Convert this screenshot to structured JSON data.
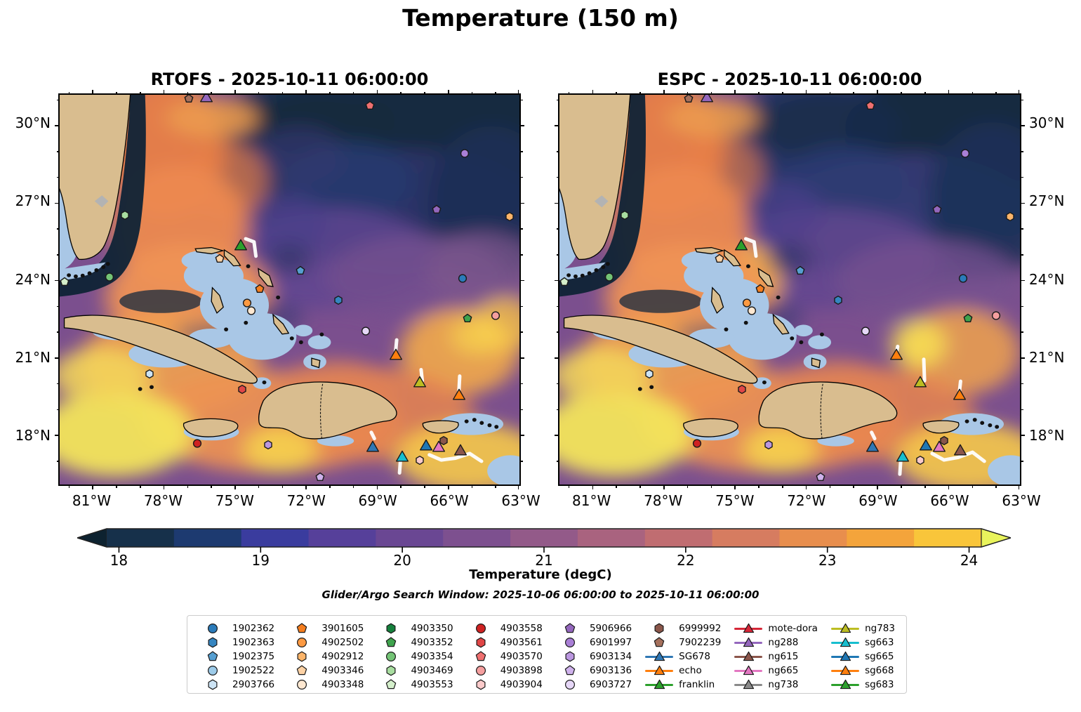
{
  "figure": {
    "title": "Temperature (150 m)",
    "subtitle": "Glider/Argo Search Window: 2025-10-06 06:00:00 to 2025-10-11 06:00:00"
  },
  "panels": [
    {
      "name": "rtofs",
      "title": "RTOFS - 2025-10-11 06:00:00"
    },
    {
      "name": "espc",
      "title": "ESPC - 2025-10-11 06:00:00"
    }
  ],
  "axes": {
    "lon_left_edge": 82.4,
    "lon_right_edge": 63.0,
    "lat_top_edge": 31.2,
    "lat_bottom_edge": 16.1,
    "x_ticks": [
      {
        "lon": 81,
        "label": "81°W"
      },
      {
        "lon": 78,
        "label": "78°W"
      },
      {
        "lon": 75,
        "label": "75°W"
      },
      {
        "lon": 72,
        "label": "72°W"
      },
      {
        "lon": 69,
        "label": "69°W"
      },
      {
        "lon": 66,
        "label": "66°W"
      },
      {
        "lon": 63,
        "label": "63°W"
      }
    ],
    "x_minor_ticks": [
      82,
      80,
      79,
      77,
      76,
      74,
      73,
      71,
      70,
      68,
      67,
      65,
      64
    ],
    "y_ticks": [
      {
        "lat": 30,
        "label": "30°N"
      },
      {
        "lat": 27,
        "label": "27°N"
      },
      {
        "lat": 24,
        "label": "24°N"
      },
      {
        "lat": 21,
        "label": "21°N"
      },
      {
        "lat": 18,
        "label": "18°N"
      }
    ],
    "y_minor_ticks": [
      31,
      29,
      28,
      26,
      25,
      23,
      22,
      20,
      19,
      17
    ]
  },
  "colorbar": {
    "label": "Temperature (degC)",
    "ticks": [
      "18",
      "19",
      "20",
      "21",
      "22",
      "23",
      "24"
    ],
    "arrow_left": "#0d2230",
    "arrow_right": "#e9f45c",
    "segments": [
      "#16304a",
      "#1d3a70",
      "#3a3c9e",
      "#56409a",
      "#6a4793",
      "#7d508f",
      "#935a89",
      "#a9637f",
      "#c06d71",
      "#d67c60",
      "#e88e4d",
      "#f4a43b",
      "#f9c53a"
    ]
  },
  "legend": {
    "entries": [
      {
        "id": "1902362",
        "shape": "circle",
        "color": "#2b7bba",
        "line": false
      },
      {
        "id": "1902363",
        "shape": "hexagon",
        "color": "#3585c0",
        "line": false
      },
      {
        "id": "1902375",
        "shape": "pentagon",
        "color": "#569fd1",
        "line": false
      },
      {
        "id": "1902522",
        "shape": "circle",
        "color": "#9dcbe9",
        "line": false
      },
      {
        "id": "2903766",
        "shape": "hexagon",
        "color": "#cde4f5",
        "line": false
      },
      {
        "id": "3901605",
        "shape": "pentagon",
        "color": "#f57e1f",
        "line": false
      },
      {
        "id": "4902502",
        "shape": "circle",
        "color": "#fd9a42",
        "line": false
      },
      {
        "id": "4902912",
        "shape": "hexagon",
        "color": "#fdb56a",
        "line": false
      },
      {
        "id": "4903346",
        "shape": "pentagon",
        "color": "#fdd2a5",
        "line": false
      },
      {
        "id": "4903348",
        "shape": "circle",
        "color": "#fee8d1",
        "line": false
      },
      {
        "id": "4903350",
        "shape": "hexagon",
        "color": "#15803c",
        "line": false
      },
      {
        "id": "4903352",
        "shape": "pentagon",
        "color": "#3fa34d",
        "line": false
      },
      {
        "id": "4903354",
        "shape": "circle",
        "color": "#74c476",
        "line": false
      },
      {
        "id": "4903469",
        "shape": "hexagon",
        "color": "#a8dda0",
        "line": false
      },
      {
        "id": "4903553",
        "shape": "pentagon",
        "color": "#d4efcb",
        "line": false
      },
      {
        "id": "4903558",
        "shape": "circle",
        "color": "#cf2222",
        "line": false
      },
      {
        "id": "4903561",
        "shape": "hexagon",
        "color": "#e04646",
        "line": false
      },
      {
        "id": "4903570",
        "shape": "pentagon",
        "color": "#ef7070",
        "line": false
      },
      {
        "id": "4903898",
        "shape": "circle",
        "color": "#f59f9f",
        "line": false
      },
      {
        "id": "4903904",
        "shape": "hexagon",
        "color": "#fbcaca",
        "line": false
      },
      {
        "id": "5906966",
        "shape": "pentagon",
        "color": "#9467bd",
        "line": false
      },
      {
        "id": "6901997",
        "shape": "circle",
        "color": "#a97fd6",
        "line": false
      },
      {
        "id": "6903134",
        "shape": "hexagon",
        "color": "#bb97e0",
        "line": false
      },
      {
        "id": "6903136",
        "shape": "pentagon",
        "color": "#cfb2ec",
        "line": false
      },
      {
        "id": "6903727",
        "shape": "circle",
        "color": "#e6d7f7",
        "line": false
      },
      {
        "id": "6999992",
        "shape": "hexagon",
        "color": "#8a564a",
        "line": false
      },
      {
        "id": "7902239",
        "shape": "pentagon",
        "color": "#a5705c",
        "line": false
      },
      {
        "id": "SG678",
        "shape": "triangle",
        "color": "#2f77b4",
        "line": true
      },
      {
        "id": "echo",
        "shape": "triangle",
        "color": "#ff7f0e",
        "line": true
      },
      {
        "id": "franklin",
        "shape": "triangle",
        "color": "#2ca02c",
        "line": true
      },
      {
        "id": "mote-dora",
        "shape": "triangle",
        "color": "#d62738",
        "line": true
      },
      {
        "id": "ng288",
        "shape": "triangle",
        "color": "#9467bd",
        "line": true
      },
      {
        "id": "ng615",
        "shape": "triangle",
        "color": "#8c564b",
        "line": true
      },
      {
        "id": "ng665",
        "shape": "triangle",
        "color": "#e377c2",
        "line": true
      },
      {
        "id": "ng738",
        "shape": "triangle",
        "color": "#8a8a8a",
        "line": true
      },
      {
        "id": "ng783",
        "shape": "triangle",
        "color": "#bcbd22",
        "line": true
      },
      {
        "id": "sg663",
        "shape": "triangle",
        "color": "#17becf",
        "line": true
      },
      {
        "id": "sg665",
        "shape": "triangle",
        "color": "#1f77b4",
        "line": true
      },
      {
        "id": "sg668",
        "shape": "triangle",
        "color": "#ff7f0e",
        "line": true
      },
      {
        "id": "sg683",
        "shape": "triangle",
        "color": "#2ca02c",
        "line": true
      }
    ]
  },
  "chart_data": {
    "type": "heatmap",
    "subtype": "geographic-temperature-field-comparison",
    "variable": "Temperature",
    "depth": "150 m",
    "units": "degC",
    "models": [
      "RTOFS",
      "ESPC"
    ],
    "valid_time": "2025-10-11 06:00:00",
    "search_window": [
      "2025-10-06 06:00:00",
      "2025-10-11 06:00:00"
    ],
    "colorbar_range_degc": [
      18,
      24.5
    ],
    "map_extent": {
      "lon_w": 82.4,
      "lon_e": 63.0,
      "lat_s": 16.1,
      "lat_n": 31.2
    },
    "platforms": [
      {
        "id": "7902239",
        "lon": 76.95,
        "lat": 31.0
      },
      {
        "id": "4903570",
        "lon": 69.3,
        "lat": 30.75
      },
      {
        "id": "6901997",
        "lon": 65.3,
        "lat": 28.9
      },
      {
        "id": "4903469",
        "lon": 79.65,
        "lat": 26.5
      },
      {
        "id": "5906966",
        "lon": 66.5,
        "lat": 26.7
      },
      {
        "id": "4902912",
        "lon": 63.4,
        "lat": 26.45
      },
      {
        "id": "4903346",
        "lon": 75.65,
        "lat": 24.8
      },
      {
        "id": "1902375",
        "lon": 72.25,
        "lat": 24.35
      },
      {
        "id": "4903553",
        "lon": 82.2,
        "lat": 23.9
      },
      {
        "id": "4903354",
        "lon": 80.3,
        "lat": 24.1
      },
      {
        "id": "1902362",
        "lon": 65.4,
        "lat": 24.05
      },
      {
        "id": "3901605",
        "lon": 73.95,
        "lat": 23.65
      },
      {
        "id": "4902502",
        "lon": 74.5,
        "lat": 23.1
      },
      {
        "id": "4903348",
        "lon": 74.3,
        "lat": 22.8
      },
      {
        "id": "1902363",
        "lon": 70.65,
        "lat": 23.2
      },
      {
        "id": "4903352",
        "lon": 65.2,
        "lat": 22.5
      },
      {
        "id": "4903898",
        "lon": 64.0,
        "lat": 22.6
      },
      {
        "id": "6903727",
        "lon": 69.5,
        "lat": 22.0
      },
      {
        "id": "2903766",
        "lon": 78.6,
        "lat": 20.35
      },
      {
        "id": "4903561",
        "lon": 74.7,
        "lat": 19.75
      },
      {
        "id": "4903558",
        "lon": 76.6,
        "lat": 17.65
      },
      {
        "id": "6903134",
        "lon": 73.6,
        "lat": 17.6
      },
      {
        "id": "6903136",
        "lon": 71.4,
        "lat": 16.35
      },
      {
        "id": "4903904",
        "lon": 67.2,
        "lat": 17.0
      },
      {
        "id": "6999992",
        "lon": 66.2,
        "lat": 17.75
      },
      {
        "id": "ng288",
        "lon": 76.2,
        "lat": 31.05
      },
      {
        "id": "franklin",
        "lon": 74.75,
        "lat": 25.3
      },
      {
        "id": "echo",
        "lon": 68.2,
        "lat": 21.05
      },
      {
        "id": "ng783",
        "lon": 67.2,
        "lat": 20.0
      },
      {
        "id": "sg668",
        "lon": 65.55,
        "lat": 19.5
      },
      {
        "id": "SG678",
        "lon": 69.2,
        "lat": 17.5
      },
      {
        "id": "sg663",
        "lon": 67.95,
        "lat": 17.1
      },
      {
        "id": "sg665",
        "lon": 66.95,
        "lat": 17.55
      },
      {
        "id": "ng665",
        "lon": 66.4,
        "lat": 17.5
      },
      {
        "id": "ng615",
        "lon": 65.5,
        "lat": 17.35
      }
    ],
    "tracks": {
      "rtofs": [
        {
          "id": "franklin",
          "pts": [
            [
              74.55,
              25.62
            ],
            [
              74.2,
              25.5
            ],
            [
              74.12,
              24.95
            ]
          ]
        },
        {
          "id": "echo",
          "pts": [
            [
              68.18,
              21.7
            ],
            [
              68.24,
              21.1
            ]
          ]
        },
        {
          "id": "ng783",
          "pts": [
            [
              67.15,
              20.55
            ],
            [
              67.1,
              20.12
            ]
          ]
        },
        {
          "id": "sg668",
          "pts": [
            [
              65.52,
              20.3
            ],
            [
              65.56,
              19.6
            ]
          ]
        },
        {
          "id": "sg663",
          "pts": [
            [
              68.02,
              17.05
            ],
            [
              68.06,
              16.55
            ]
          ]
        },
        {
          "id": "SG678",
          "pts": [
            [
              69.25,
              18.12
            ],
            [
              69.12,
              17.88
            ]
          ]
        },
        {
          "id": "ng615",
          "pts": [
            [
              66.8,
              17.25
            ],
            [
              66.3,
              17.05
            ],
            [
              65.7,
              17.12
            ],
            [
              65.1,
              17.3
            ],
            [
              64.6,
              17.0
            ]
          ]
        }
      ],
      "espc": [
        {
          "id": "franklin",
          "pts": [
            [
              74.55,
              25.62
            ],
            [
              74.2,
              25.5
            ],
            [
              74.12,
              24.95
            ]
          ]
        },
        {
          "id": "echo",
          "pts": [
            [
              68.15,
              21.45
            ],
            [
              68.22,
              21.12
            ]
          ]
        },
        {
          "id": "ng783",
          "pts": [
            [
              67.05,
              20.95
            ],
            [
              67.02,
              20.12
            ]
          ]
        },
        {
          "id": "sg668",
          "pts": [
            [
              65.5,
              20.1
            ],
            [
              65.56,
              19.6
            ]
          ]
        },
        {
          "id": "sg663",
          "pts": [
            [
              68.02,
              17.05
            ],
            [
              68.06,
              16.5
            ]
          ]
        },
        {
          "id": "SG678",
          "pts": [
            [
              69.25,
              18.12
            ],
            [
              69.12,
              17.88
            ]
          ]
        },
        {
          "id": "ng615",
          "pts": [
            [
              66.7,
              17.3
            ],
            [
              66.2,
              17.05
            ],
            [
              65.6,
              17.15
            ],
            [
              65.0,
              17.35
            ],
            [
              64.5,
              17.0
            ]
          ]
        }
      ]
    }
  }
}
